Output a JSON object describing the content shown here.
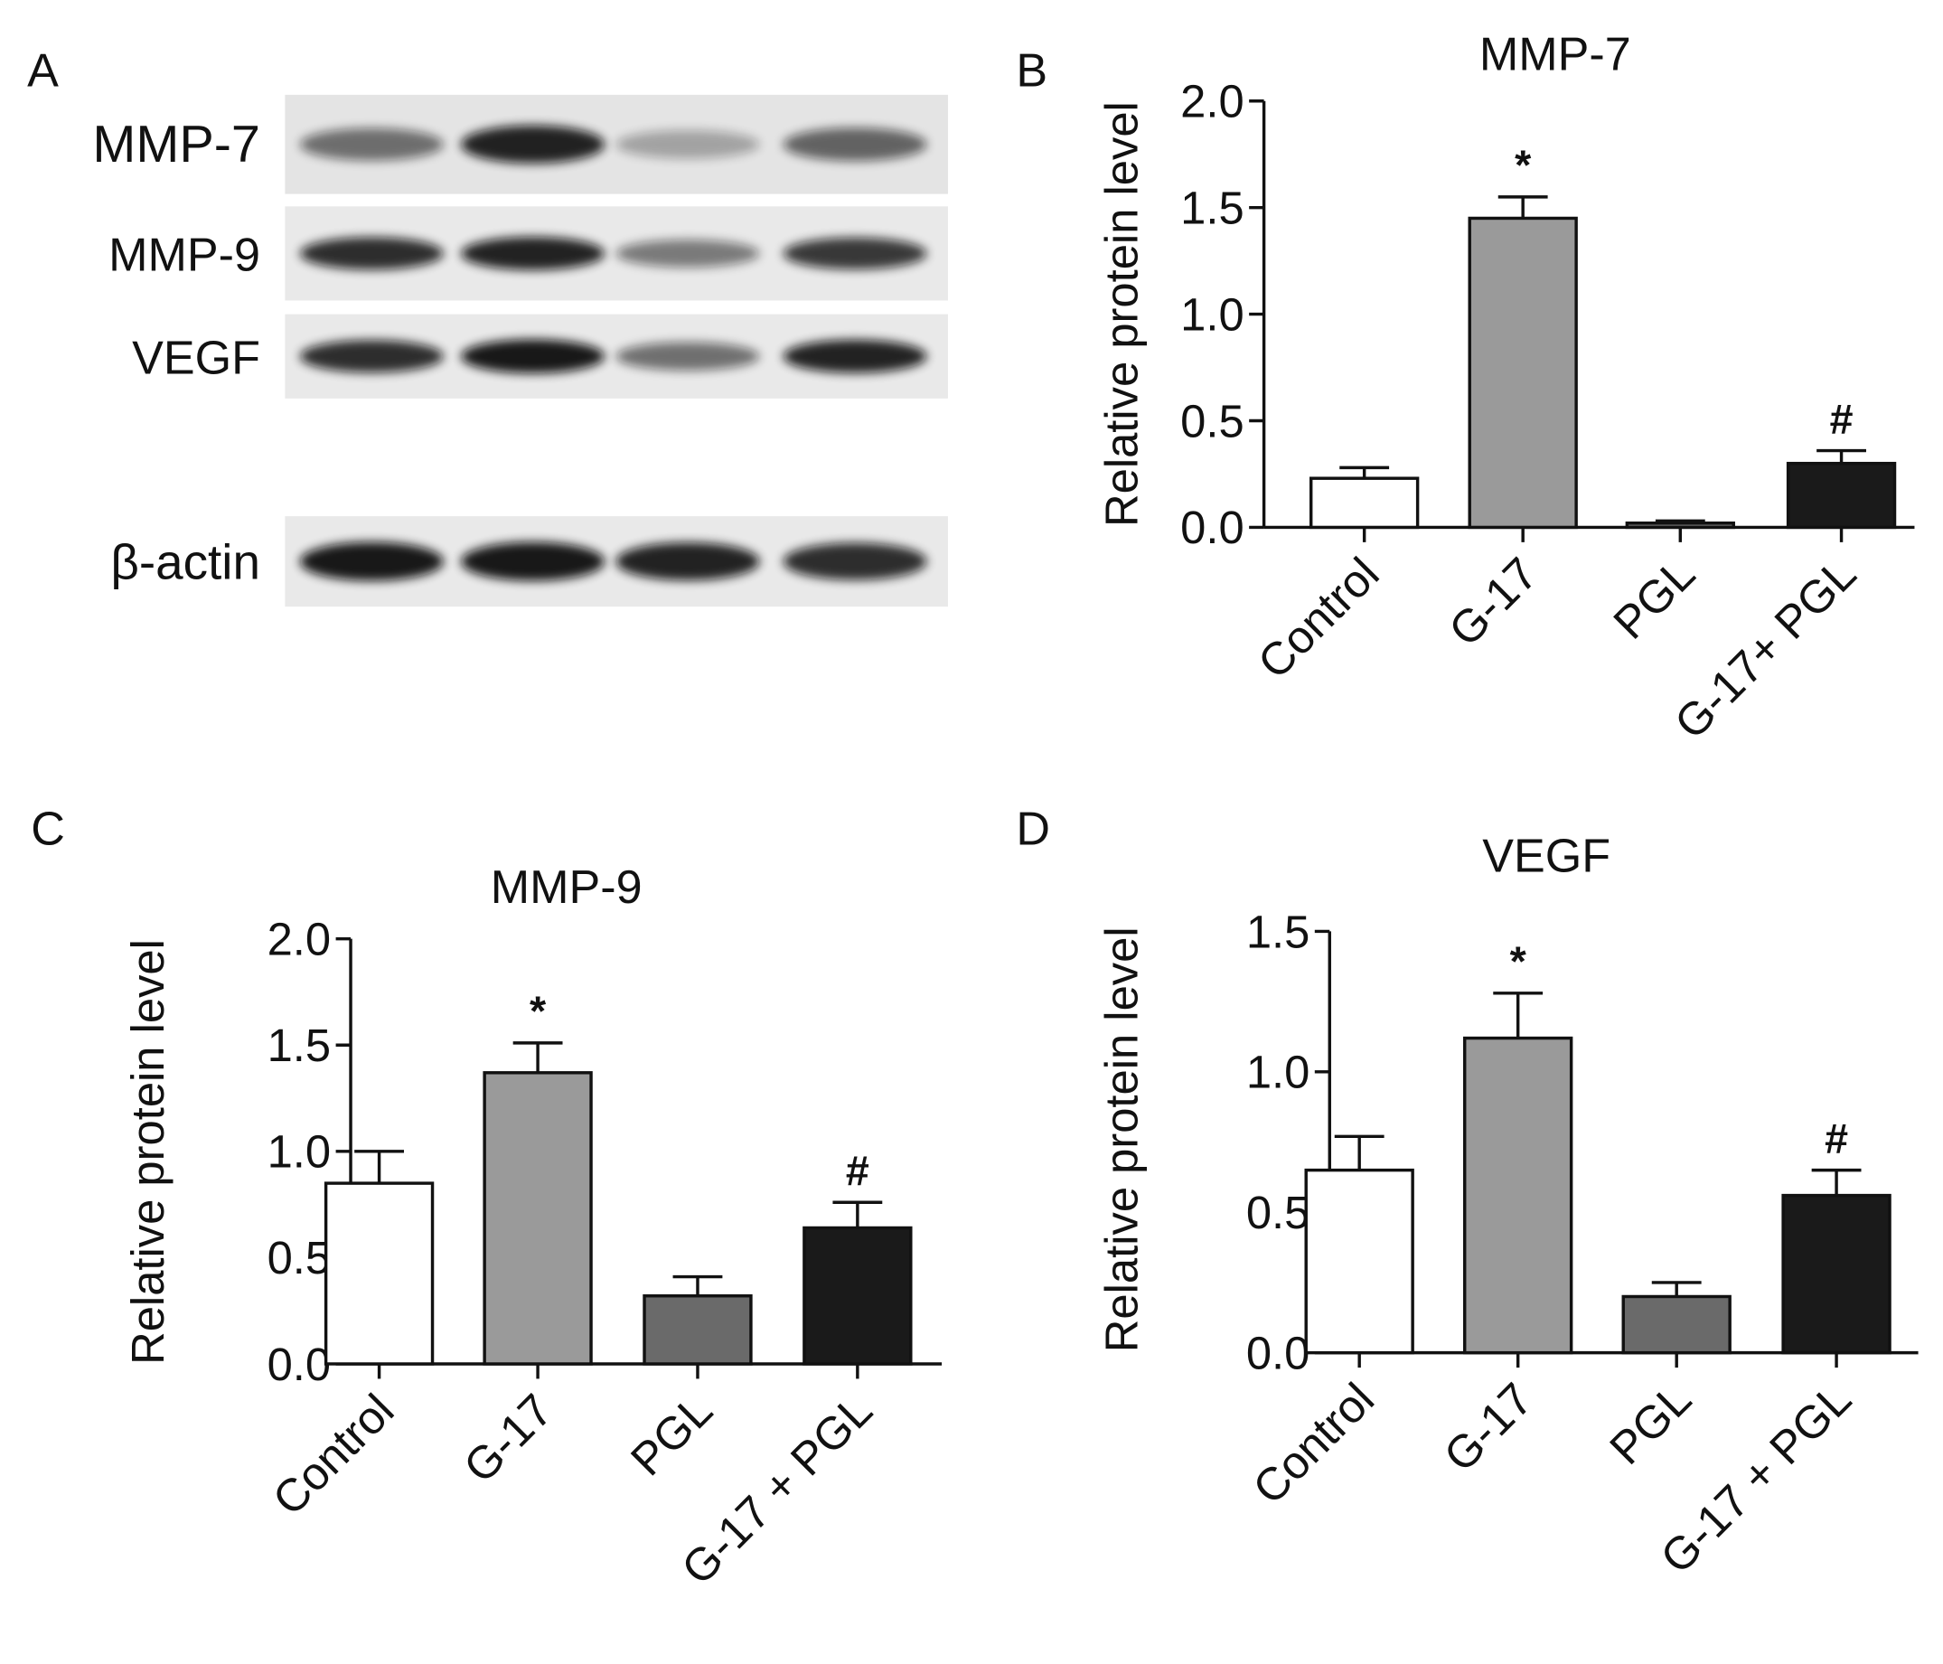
{
  "blot": {
    "panel_label": "A",
    "rows": [
      "MMP-7",
      "MMP-9",
      "VEGF",
      "β-actin"
    ]
  },
  "chart_data": [
    {
      "type": "bar",
      "panel_label": "B",
      "title": "MMP-7",
      "y_label": "Relative protein level",
      "categories": [
        "Control",
        "G-17",
        "PGL",
        "G-17+ PGL"
      ],
      "values": [
        0.23,
        1.45,
        0.02,
        0.3
      ],
      "errors": [
        0.05,
        0.1,
        0.01,
        0.06
      ],
      "annotations": [
        null,
        "*",
        null,
        "#"
      ],
      "colors": [
        "#ffffff",
        "#9a9a9a",
        "#6a6a6a",
        "#1a1a1a"
      ],
      "ylim": [
        0,
        2
      ],
      "yticks": [
        {
          "value": 0,
          "label": "0.0"
        },
        {
          "value": 0.5,
          "label": "0.5"
        },
        {
          "value": 1,
          "label": "1.0"
        },
        {
          "value": 1.5,
          "label": "1.5"
        },
        {
          "value": 2,
          "label": "2.0"
        }
      ]
    },
    {
      "type": "bar",
      "panel_label": "C",
      "title": "MMP-9",
      "y_label": "Relative protein level",
      "categories": [
        "Control",
        "G-17",
        "PGL",
        "G-17 + PGL"
      ],
      "values": [
        0.85,
        1.37,
        0.32,
        0.64
      ],
      "errors": [
        0.15,
        0.14,
        0.09,
        0.12
      ],
      "annotations": [
        null,
        "*",
        null,
        "#"
      ],
      "colors": [
        "#ffffff",
        "#9a9a9a",
        "#6a6a6a",
        "#1a1a1a"
      ],
      "ylim": [
        0,
        2
      ],
      "yticks": [
        {
          "value": 0,
          "label": "0.0"
        },
        {
          "value": 0.5,
          "label": "0.5"
        },
        {
          "value": 1,
          "label": "1.0"
        },
        {
          "value": 1.5,
          "label": "1.5"
        },
        {
          "value": 2,
          "label": "2.0"
        }
      ]
    },
    {
      "type": "bar",
      "panel_label": "D",
      "title": "VEGF",
      "y_label": "Relative protein level",
      "categories": [
        "Control",
        "G-17",
        "PGL",
        "G-17 + PGL"
      ],
      "values": [
        0.65,
        1.12,
        0.2,
        0.56
      ],
      "errors": [
        0.12,
        0.16,
        0.05,
        0.09
      ],
      "annotations": [
        null,
        "*",
        null,
        "#"
      ],
      "colors": [
        "#ffffff",
        "#9a9a9a",
        "#6a6a6a",
        "#1a1a1a"
      ],
      "ylim": [
        0,
        1.5
      ],
      "yticks": [
        {
          "value": 0,
          "label": "0.0"
        },
        {
          "value": 0.5,
          "label": "0.5"
        },
        {
          "value": 1,
          "label": "1.0"
        },
        {
          "value": 1.5,
          "label": "1.5"
        }
      ]
    }
  ]
}
